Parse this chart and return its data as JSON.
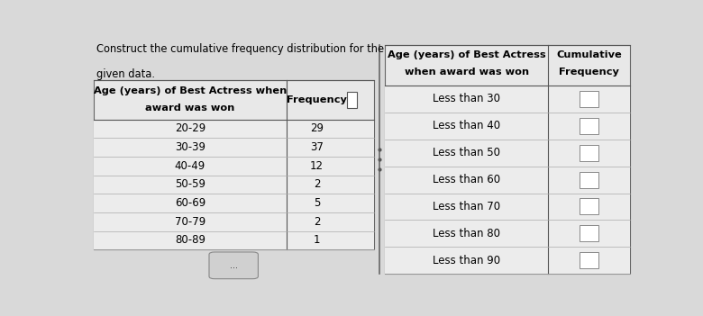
{
  "intro_text_line1": "Construct the cumulative frequency distribution for the",
  "intro_text_line2": "given data.",
  "left_table": {
    "col1_header_line1": "Age (years) of Best Actress when",
    "col1_header_line2": "award was won",
    "col2_header": "Frequency",
    "age_groups": [
      "20-29",
      "30-39",
      "40-49",
      "50-59",
      "60-69",
      "70-79",
      "80-89"
    ],
    "frequencies": [
      29,
      37,
      12,
      2,
      5,
      2,
      1
    ]
  },
  "right_table": {
    "col1_header_line1": "Age (years) of Best Actress",
    "col1_header_line2": "when award was won",
    "col2_header_line1": "Cumulative",
    "col2_header_line2": "Frequency",
    "age_labels": [
      "Less than 30",
      "Less than 40",
      "Less than 50",
      "Less than 60",
      "Less than 70",
      "Less than 80",
      "Less than 90"
    ]
  },
  "bg_color": "#d9d9d9",
  "text_color": "#000000"
}
